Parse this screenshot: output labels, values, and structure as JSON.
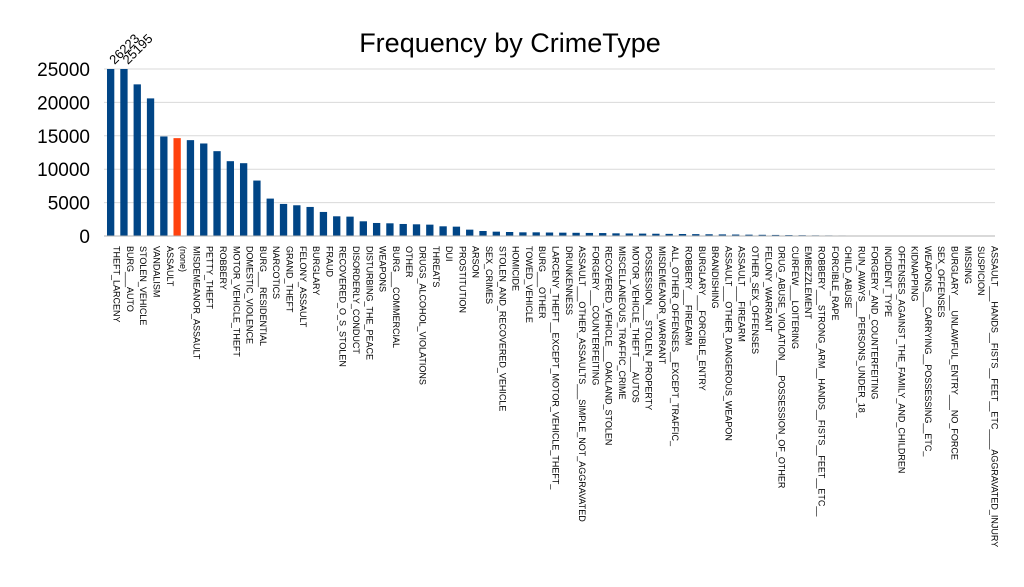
{
  "chart_data": {
    "type": "bar",
    "title": "Frequency by CrimeType",
    "xlabel": "",
    "ylabel": "",
    "ylim": [
      0,
      25000
    ],
    "yticks": [
      0,
      5000,
      10000,
      15000,
      20000,
      25000
    ],
    "grid": true,
    "legend": "none",
    "bar_color": "#004586",
    "highlight_color": "#ff420e",
    "highlight_category": "(none)",
    "data_labels": [
      {
        "category": "THEFT_LARCENY",
        "text": "26223"
      },
      {
        "category": "BURG___AUTO",
        "text": "25195"
      }
    ],
    "categories": [
      "THEFT_LARCENY",
      "BURG___AUTO",
      "STOLEN_VEHICLE",
      "VANDALISM",
      "ASSAULT",
      "(none)",
      "MISDEMEANOR_ASSAULT",
      "PETTY_THEFT",
      "ROBBERY",
      "MOTOR_VEHICLE_THEFT",
      "DOMESTIC_VIOLENCE",
      "BURG___RESIDENTIAL",
      "NARCOTICS",
      "GRAND_THEFT",
      "FELONY_ASSAULT",
      "BURGLARY",
      "FRAUD",
      "RECOVERED_O_S_STOLEN",
      "DISORDERLY_CONDUCT",
      "DISTURBING_THE_PEACE",
      "WEAPONS",
      "BURG___COMMERCIAL",
      "OTHER",
      "DRUGS_ALCOHOL_VIOLATIONS",
      "THREATS",
      "DUI",
      "PROSTITUTION",
      "ARSON",
      "SEX_CRIMES",
      "STOLEN_AND_RECOVERED_VEHICLE",
      "HOMICIDE",
      "TOWED_VEHICLE",
      "BURG___OTHER",
      "LARCENY_THEFT__EXCEPT_MOTOR_VEHICLE_THEFT_",
      "DRUNKENNESS",
      "ASSAULT___OTHER_ASSAULTS___SIMPLE_NOT_AGGRAVATED",
      "FORGERY___COUNTERFEITING",
      "RECOVERED_VEHICLE___OAKLAND_STOLEN",
      "MISCELLANEOUS_TRAFFIC_CRIME",
      "MOTOR_VEHICLE_THEFT___AUTOS",
      "POSSESSION___STOLEN_PROPERTY",
      "MISDEMEANOR_WARRANT",
      "ALL_OTHER_OFFENSES__EXCEPT_TRAFFIC_",
      "ROBBERY___FIREARM",
      "BURGLARY___FORCIBLE_ENTRY",
      "BRANDISHING",
      "ASSAULT___OTHER_DANGEROUS_WEAPON",
      "ASSAULT___FIREARM",
      "OTHER_SEX_OFFENSES",
      "FELONY_WARRANT",
      "DRUG_ABUSE_VIOLATION___POSSESSION_OF_OTHER",
      "CURFEW___LOITERING",
      "EMBEZZLEMENT",
      "ROBBERY___STRONG_ARM__HANDS__FISTS__FEET__ETC__",
      "FORCIBLE_RAPE",
      "CHILD_ABUSE",
      "RUN_AWAYS___PERSONS_UNDER_18_",
      "FORGERY_AND_COUNTERFEITING",
      "INCIDENT_TYPE",
      "OFFENSES_AGAINST_THE_FAMILY_AND_CHILDREN",
      "KIDNAPPING",
      "WEAPONS___CARRYING__POSSESSING__ETC_",
      "SEX_OFFENSES",
      "BURGLARY___UNLAWFUL_ENTRY___NO_FORCE",
      "MISSING",
      "SUSPICION",
      "ASSAULT___HANDS__FISTS__FEET__ETC____AGGRAVATED_INJURY"
    ],
    "values": [
      26223,
      25195,
      22700,
      20600,
      14900,
      14650,
      14350,
      13850,
      12700,
      11200,
      10900,
      8300,
      5600,
      4800,
      4600,
      4350,
      3600,
      2950,
      2900,
      2200,
      1950,
      1900,
      1800,
      1750,
      1700,
      1450,
      1400,
      950,
      750,
      650,
      600,
      550,
      550,
      520,
      500,
      480,
      460,
      440,
      400,
      380,
      360,
      340,
      320,
      300,
      280,
      260,
      240,
      220,
      200,
      180,
      160,
      140,
      120,
      100,
      90,
      80,
      70,
      60,
      50,
      40,
      30,
      20,
      15,
      10,
      8,
      5,
      3
    ]
  }
}
